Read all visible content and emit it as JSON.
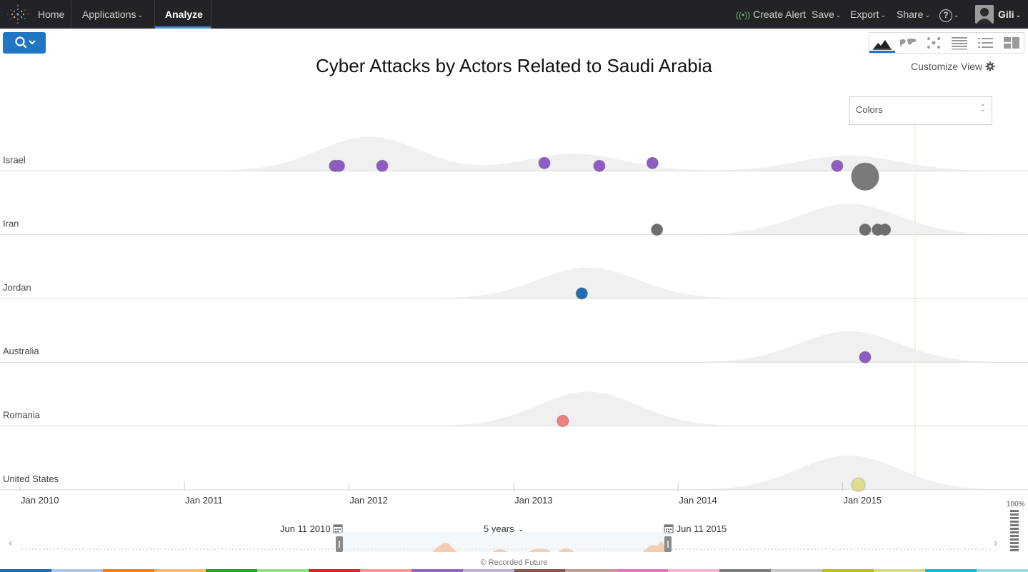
{
  "nav": {
    "home": "Home",
    "applications": "Applications",
    "analyze": "Analyze",
    "create_alert": "Create Alert",
    "save": "Save",
    "export": "Export",
    "share": "Share",
    "help": "?",
    "user": "Gili"
  },
  "toolbar": {
    "views": [
      "timeline-view-icon",
      "map-view-icon",
      "network-view-icon",
      "table-view-icon",
      "list-view-icon",
      "panels-view-icon"
    ],
    "active_view": "timeline-view-icon"
  },
  "title": "Cyber Attacks by Actors Related to Saudi Arabia",
  "customize_view": "Customize View",
  "colors_dropdown": "Colors",
  "chart_data": {
    "type": "scatter",
    "x_axis_ticks": [
      "Jan 2010",
      "Jan 2011",
      "Jan 2012",
      "Jan 2013",
      "Jan 2014",
      "Jan 2015"
    ],
    "xlim": [
      "2010-01-01",
      "2015-12-31"
    ],
    "rows": [
      {
        "name": "Israel",
        "density_peaks": [
          {
            "date": "2012-02",
            "height": 1.0
          },
          {
            "date": "2013-05",
            "height": 0.5
          },
          {
            "date": "2015-01",
            "height": 0.45
          }
        ],
        "events": [
          {
            "date": "2011-12-01",
            "size": 1,
            "color": "#8e5cc4"
          },
          {
            "date": "2011-12-10",
            "size": 1,
            "color": "#8e5cc4"
          },
          {
            "date": "2012-03-15",
            "size": 1,
            "color": "#8e5cc4"
          },
          {
            "date": "2013-03-10",
            "size": 1,
            "color": "#8e5cc4"
          },
          {
            "date": "2013-07-10",
            "size": 1,
            "color": "#8e5cc4"
          },
          {
            "date": "2013-11-05",
            "size": 1,
            "color": "#8e5cc4"
          },
          {
            "date": "2014-12-20",
            "size": 1,
            "color": "#8e5cc4"
          },
          {
            "date": "2015-02-20",
            "size": 2.4,
            "color": "#7a7a7a"
          }
        ]
      },
      {
        "name": "Iran",
        "density_peaks": [
          {
            "date": "2015-01",
            "height": 0.9
          }
        ],
        "events": [
          {
            "date": "2013-11-15",
            "size": 1,
            "color": "#6e6e6e"
          },
          {
            "date": "2015-02-20",
            "size": 1,
            "color": "#6e6e6e"
          },
          {
            "date": "2015-03-20",
            "size": 1,
            "color": "#6e6e6e"
          },
          {
            "date": "2015-04-05",
            "size": 1,
            "color": "#6e6e6e"
          }
        ]
      },
      {
        "name": "Jordan",
        "density_peaks": [
          {
            "date": "2013-06",
            "height": 0.9
          }
        ],
        "events": [
          {
            "date": "2013-06-01",
            "size": 1,
            "color": "#1f6db3"
          }
        ]
      },
      {
        "name": "Australia",
        "density_peaks": [
          {
            "date": "2015-01",
            "height": 0.9
          }
        ],
        "events": [
          {
            "date": "2015-02-20",
            "size": 1,
            "color": "#8e5cc4"
          }
        ]
      },
      {
        "name": "Romania",
        "density_peaks": [
          {
            "date": "2013-06",
            "height": 1.0
          }
        ],
        "events": [
          {
            "date": "2013-04-20",
            "size": 1,
            "color": "#f08080"
          }
        ]
      },
      {
        "name": "United States",
        "density_peaks": [
          {
            "date": "2015-01",
            "height": 1.0
          }
        ],
        "events": [
          {
            "date": "2015-02-05",
            "size": 1.2,
            "color": "#d8d86e"
          }
        ]
      }
    ],
    "current_date_marker": "2015-06-11"
  },
  "timeline": {
    "start_date": "Jun 11 2010",
    "end_date": "Jun 11 2015",
    "period": "5 years",
    "zoom": "100%"
  },
  "footer": {
    "credit": "© Recorded Future",
    "strip_colors": [
      "#1f6db3",
      "#aec7e8",
      "#ff7f0e",
      "#ffbb78",
      "#2ca02c",
      "#98df8a",
      "#d62728",
      "#ff9896",
      "#9467bd",
      "#c5b0d5",
      "#8c564b",
      "#c49c94",
      "#e377c2",
      "#f7b6d2",
      "#7f7f7f",
      "#c7c7c7",
      "#bcbd22",
      "#dbdb8d",
      "#17becf",
      "#9edae5"
    ]
  }
}
